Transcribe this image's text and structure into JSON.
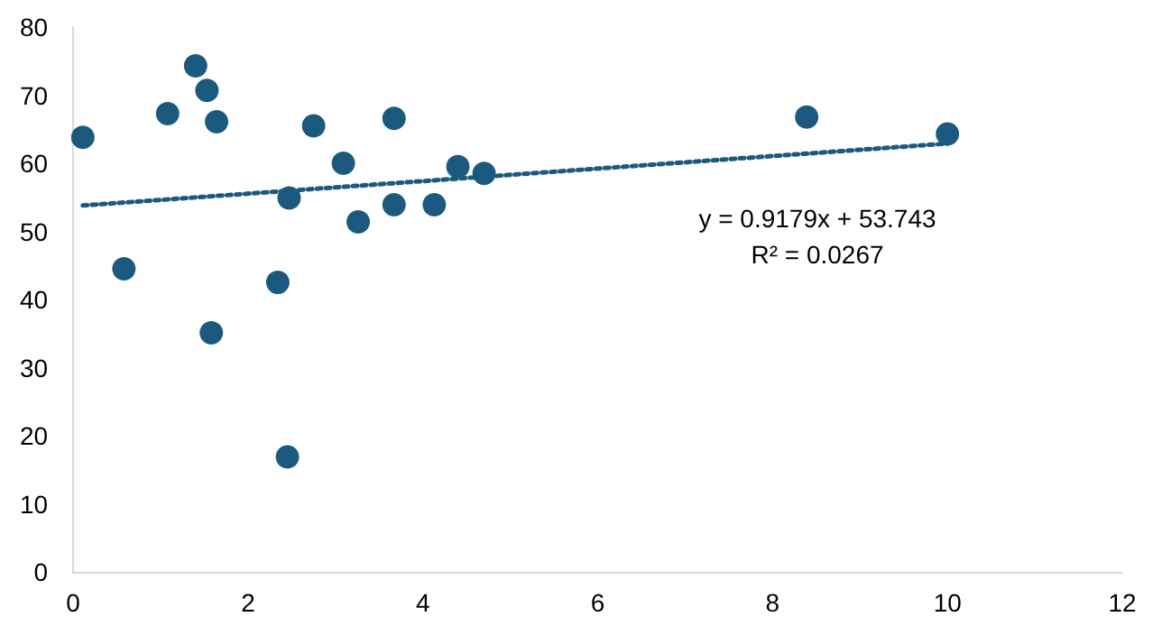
{
  "chart_data": {
    "type": "scatter",
    "xlim": [
      0,
      12
    ],
    "xticks": [
      0,
      2,
      4,
      6,
      8,
      10,
      12
    ],
    "ylim": [
      0,
      80
    ],
    "yticks": [
      0,
      10,
      20,
      30,
      40,
      50,
      60,
      70,
      80
    ],
    "grid": false,
    "marker": "circle",
    "series": [
      {
        "color": "#1b5a7e",
        "x": [
          0.11,
          0.58,
          1.08,
          1.4,
          1.53,
          1.64,
          1.58,
          2.34,
          2.47,
          2.45,
          2.75,
          3.09,
          3.26,
          3.67,
          3.67,
          4.13,
          4.4,
          4.7,
          8.39,
          10
        ],
        "values": [
          63.8,
          44.5,
          67.3,
          74.3,
          70.7,
          66.1,
          35.1,
          42.5,
          54.9,
          16.9,
          65.5,
          60.0,
          51.4,
          66.6,
          53.9,
          53.9,
          59.5,
          58.5,
          66.8,
          64.3
        ]
      },
      {
        "type": "line",
        "color": "#1b5a7e",
        "line_style": "dotted",
        "marker": "none",
        "x": [
          0.11,
          10
        ],
        "values": [
          53.8,
          62.9
        ]
      }
    ],
    "annotations": [
      "y = 0.9179x + 53.743",
      "R² = 0.0267"
    ]
  }
}
